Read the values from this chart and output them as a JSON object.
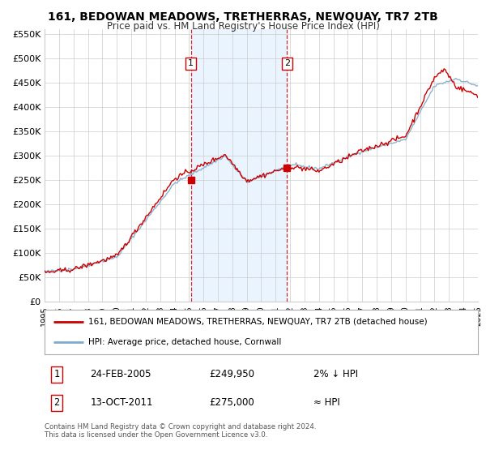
{
  "title": "161, BEDOWAN MEADOWS, TRETHERRAS, NEWQUAY, TR7 2TB",
  "subtitle": "Price paid vs. HM Land Registry's House Price Index (HPI)",
  "legend_line1": "161, BEDOWAN MEADOWS, TRETHERRAS, NEWQUAY, TR7 2TB (detached house)",
  "legend_line2": "HPI: Average price, detached house, Cornwall",
  "annotation1_label": "1",
  "annotation1_date": "24-FEB-2005",
  "annotation1_price": "£249,950",
  "annotation1_hpi": "2% ↓ HPI",
  "annotation2_label": "2",
  "annotation2_date": "13-OCT-2011",
  "annotation2_price": "£275,000",
  "annotation2_hpi": "≈ HPI",
  "footer": "Contains HM Land Registry data © Crown copyright and database right 2024.\nThis data is licensed under the Open Government Licence v3.0.",
  "sale1_x": 2005.12,
  "sale1_y": 249950,
  "sale2_x": 2011.78,
  "sale2_y": 275000,
  "vline1_x": 2005.12,
  "vline2_x": 2011.78,
  "hpi_color": "#7faacc",
  "price_color": "#cc0000",
  "marker_color": "#cc0000",
  "vline_color": "#cc0000",
  "shade_color": "#ddeeff",
  "background_color": "#ffffff",
  "grid_color": "#cccccc",
  "ylim": [
    0,
    560000
  ],
  "xlim": [
    1995,
    2025
  ],
  "yticks": [
    0,
    50000,
    100000,
    150000,
    200000,
    250000,
    300000,
    350000,
    400000,
    450000,
    500000,
    550000
  ],
  "ytick_labels": [
    "£0",
    "£50K",
    "£100K",
    "£150K",
    "£200K",
    "£250K",
    "£300K",
    "£350K",
    "£400K",
    "£450K",
    "£500K",
    "£550K"
  ],
  "xticks": [
    1995,
    1996,
    1997,
    1998,
    1999,
    2000,
    2001,
    2002,
    2003,
    2004,
    2005,
    2006,
    2007,
    2008,
    2009,
    2010,
    2011,
    2012,
    2013,
    2014,
    2015,
    2016,
    2017,
    2018,
    2019,
    2020,
    2021,
    2022,
    2023,
    2024,
    2025
  ]
}
